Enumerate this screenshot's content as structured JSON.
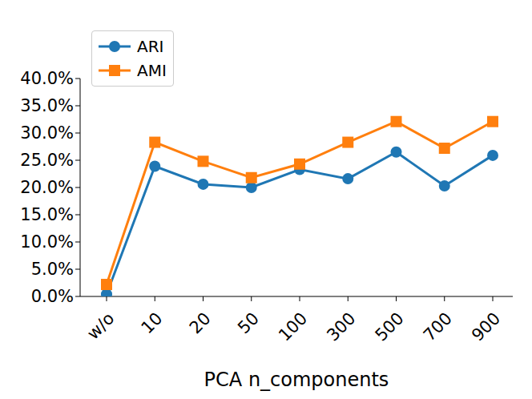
{
  "chart_data": {
    "type": "line",
    "x_label": "PCA n_components",
    "categories": [
      "w/o",
      "10",
      "20",
      "50",
      "100",
      "300",
      "500",
      "700",
      "900"
    ],
    "series": [
      {
        "name": "ARI",
        "color": "#1f77b4",
        "marker": "circle",
        "values": [
          0.4,
          23.9,
          20.6,
          20.0,
          23.3,
          21.6,
          26.5,
          20.3,
          25.9
        ]
      },
      {
        "name": "AMI",
        "color": "#ff7f0e",
        "marker": "square",
        "values": [
          2.2,
          28.3,
          24.8,
          21.8,
          24.3,
          28.3,
          32.1,
          27.2,
          32.1
        ]
      }
    ],
    "ylim": [
      0,
      40
    ],
    "yticks": [
      {
        "value": 0,
        "label": "0.0%"
      },
      {
        "value": 5,
        "label": "5.0%"
      },
      {
        "value": 10,
        "label": "10.0%"
      },
      {
        "value": 15,
        "label": "15.0%"
      },
      {
        "value": 20,
        "label": "20.0%"
      },
      {
        "value": 25,
        "label": "25.0%"
      },
      {
        "value": 30,
        "label": "30.0%"
      },
      {
        "value": 35,
        "label": "35.0%"
      },
      {
        "value": 40,
        "label": "40.0%"
      }
    ],
    "grid": false,
    "legend": "upper left"
  }
}
